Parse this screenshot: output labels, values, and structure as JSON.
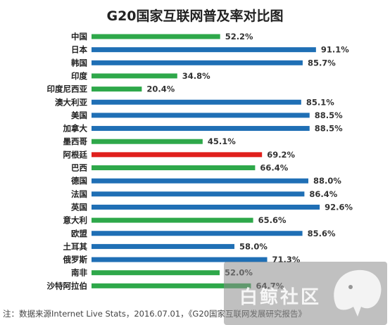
{
  "title": "G20国家互联网普及率对比图",
  "footnote": "注：数据来源Internet Live Stats，2016.07.01，《G20国家互联网发展研究报告》",
  "watermark": {
    "text": "白鲸社区"
  },
  "colors": {
    "green": "#2ea84a",
    "blue": "#1f6fb5",
    "red": "#e0201c"
  },
  "chart_data": {
    "type": "bar",
    "orientation": "horizontal",
    "title": "G20国家互联网普及率对比图",
    "xlim": [
      0,
      100
    ],
    "categories": [
      "中国",
      "日本",
      "韩国",
      "印度",
      "印度尼西亚",
      "澳大利亚",
      "美国",
      "加拿大",
      "墨西哥",
      "阿根廷",
      "巴西",
      "德国",
      "法国",
      "英国",
      "意大利",
      "欧盟",
      "土耳其",
      "俄罗斯",
      "南非",
      "沙特阿拉伯"
    ],
    "values": [
      52.2,
      91.1,
      85.7,
      34.8,
      20.4,
      85.1,
      88.5,
      88.5,
      45.1,
      69.2,
      66.4,
      88.0,
      86.4,
      92.6,
      65.6,
      85.6,
      58.0,
      71.3,
      52.0,
      64.7
    ],
    "value_labels": [
      "52.2%",
      "91.1%",
      "85.7%",
      "34.8%",
      "20.4%",
      "85.1%",
      "88.5%",
      "88.5%",
      "45.1%",
      "69.2%",
      "66.4%",
      "88.0%",
      "86.4%",
      "92.6%",
      "65.6%",
      "85.6%",
      "58.0%",
      "71.3%",
      "52.0%",
      "64.7%"
    ],
    "bar_colors": [
      "green",
      "blue",
      "blue",
      "green",
      "green",
      "blue",
      "blue",
      "blue",
      "green",
      "red",
      "green",
      "blue",
      "blue",
      "blue",
      "green",
      "blue",
      "blue",
      "blue",
      "green",
      "green"
    ],
    "grid": false,
    "legend": "none"
  }
}
